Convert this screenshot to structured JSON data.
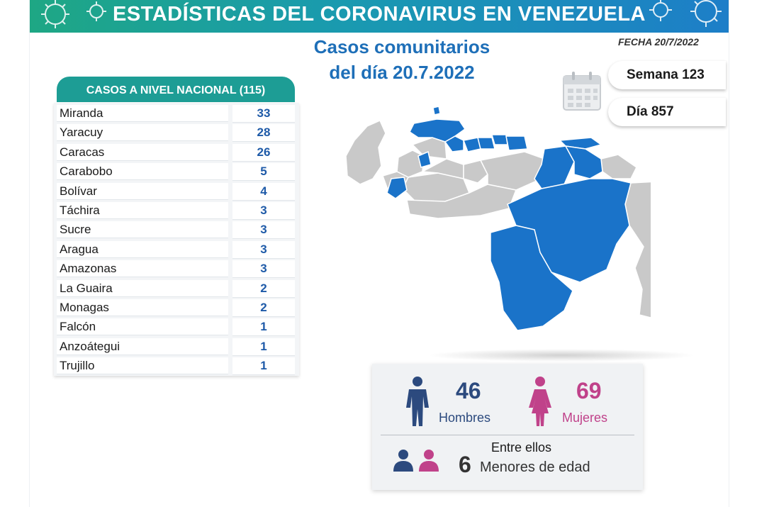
{
  "header": {
    "title": "ESTADÍSTICAS DEL CORONAVIRUS EN VENEZUELA",
    "subtitle_line1": "Casos comunitarios",
    "subtitle_line2": "del día 20.7.2022",
    "fecha": "FECHA 20/7/2022"
  },
  "week": {
    "semana": "Semana 123",
    "dia": "Día 857"
  },
  "table": {
    "header": "CASOS A NIVEL NACIONAL  (115)",
    "rows": [
      {
        "state": "Miranda",
        "cases": "33"
      },
      {
        "state": "Yaracuy",
        "cases": "28"
      },
      {
        "state": "Caracas",
        "cases": "26"
      },
      {
        "state": "Carabobo",
        "cases": "5"
      },
      {
        "state": "Bolívar",
        "cases": "4"
      },
      {
        "state": "Táchira",
        "cases": "3"
      },
      {
        "state": "Sucre",
        "cases": "3"
      },
      {
        "state": "Aragua",
        "cases": "3"
      },
      {
        "state": "Amazonas",
        "cases": "3"
      },
      {
        "state": "La Guaira",
        "cases": "2"
      },
      {
        "state": "Monagas",
        "cases": "2"
      },
      {
        "state": "Falcón",
        "cases": "1"
      },
      {
        "state": "Anzoátegui",
        "cases": "1"
      },
      {
        "state": "Trujillo",
        "cases": "1"
      }
    ]
  },
  "stats": {
    "men_count": "46",
    "men_label": "Hombres",
    "women_count": "69",
    "women_label": "Mujeres",
    "among_label": "Entre ellos",
    "minors_count": "6",
    "minors_label": "Menores de edad"
  },
  "colors": {
    "highlight_state": "#1a73c9",
    "other_state": "#c9c9c9",
    "men": "#2c4a7e",
    "women": "#c0428a",
    "table_header": "#1d9d95"
  },
  "icons": [
    "virus-icon",
    "calendar-icon",
    "man-icon",
    "woman-icon",
    "people-icon"
  ]
}
